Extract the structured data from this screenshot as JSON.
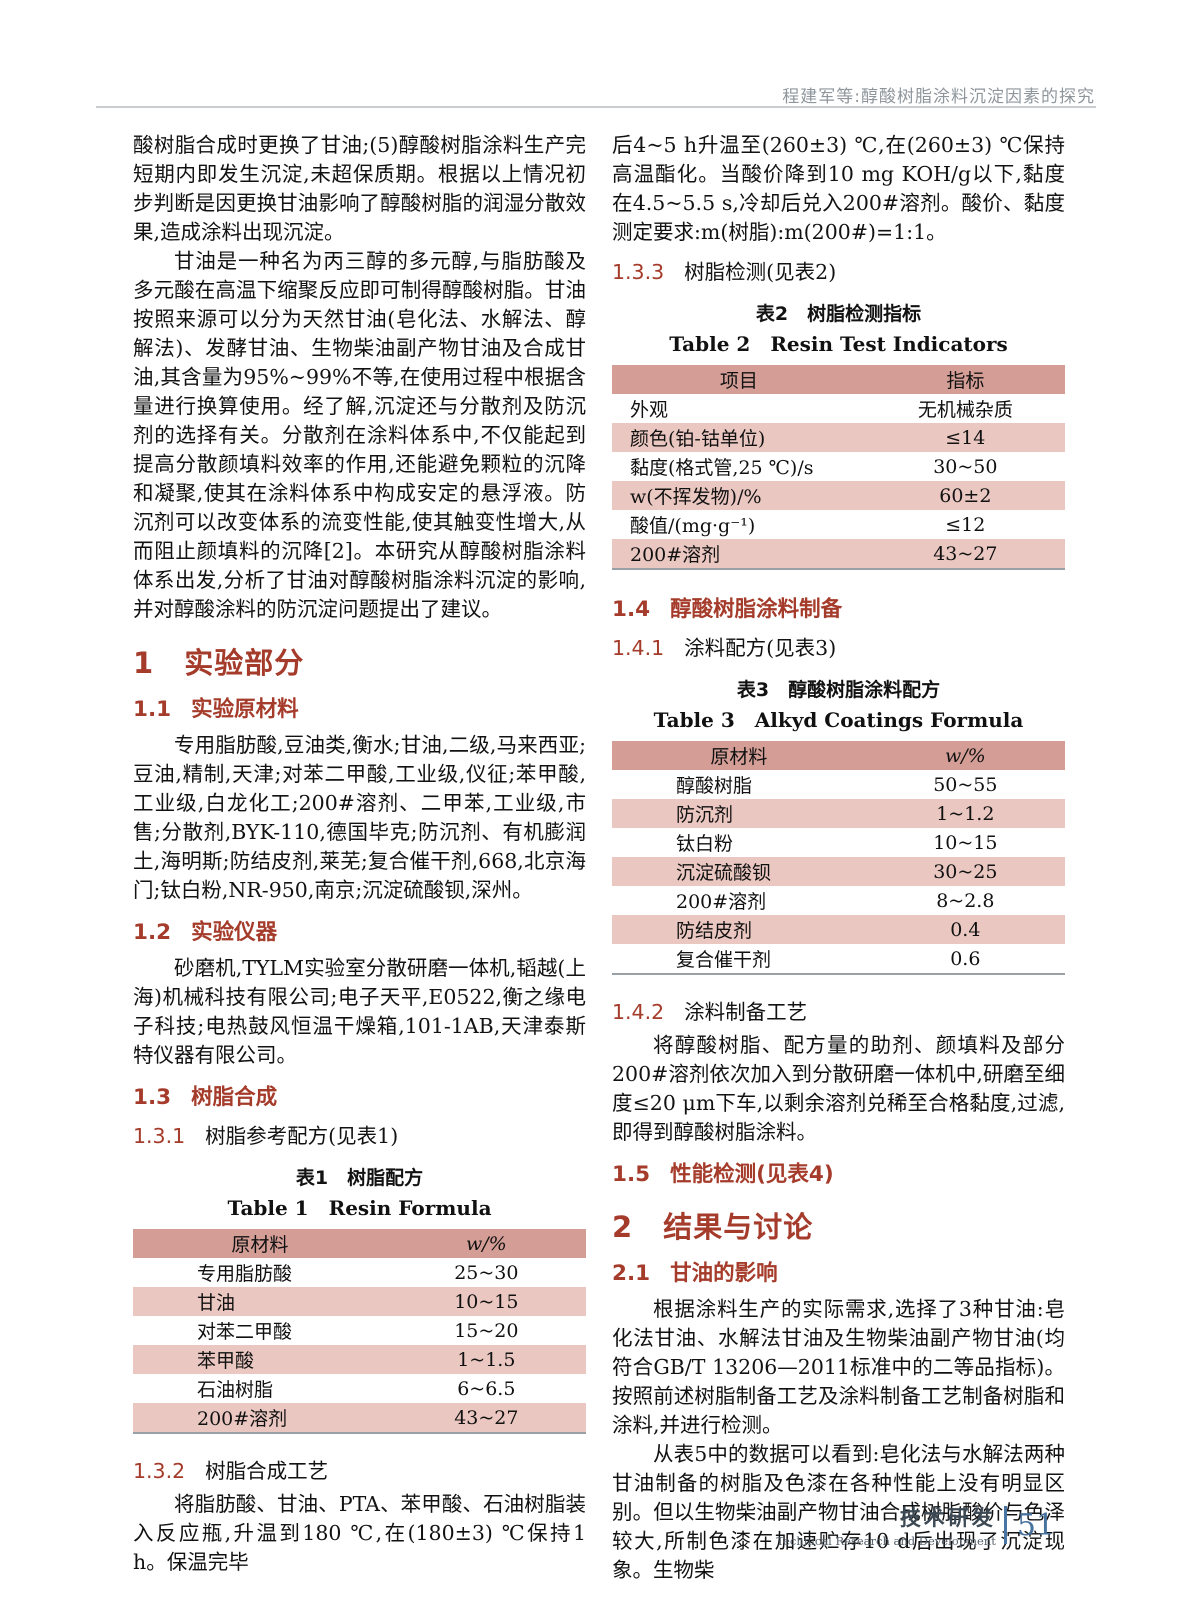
{
  "page": {
    "running_title": "程建军等:醇酸树脂涂料沉淀因素的探究",
    "footer": {
      "section_zh": "技术研发",
      "section_en": "Technical Research and Development",
      "page_number": "51"
    },
    "colors": {
      "accent_red": "#a53b2a",
      "table_header_pink": "#d49e97",
      "table_stripe_pink": "#eac7c1",
      "footer_blue": "#4a74a2"
    }
  },
  "left": {
    "para_continuation": "酸树脂合成时更换了甘油;(5)醇酸树脂涂料生产完短期内即发生沉淀,未超保质期。根据以上情况初步判断是因更换甘油影响了醇酸树脂的润湿分散效果,造成涂料出现沉淀。",
    "para_glycerol": "甘油是一种名为丙三醇的多元醇,与脂肪酸及多元酸在高温下缩聚反应即可制得醇酸树脂。甘油按照来源可以分为天然甘油(皂化法、水解法、醇解法)、发酵甘油、生物柴油副产物甘油及合成甘油,其含量为95%~99%不等,在使用过程中根据含量进行换算使用。经了解,沉淀还与分散剂及防沉剂的选择有关。分散剂在涂料体系中,不仅能起到提高分散颜填料效率的作用,还能避免颗粒的沉降和凝聚,使其在涂料体系中构成安定的悬浮液。防沉剂可以改变体系的流变性能,使其触变性增大,从而阻止颜填料的沉降[2]。本研究从醇酸树脂涂料体系出发,分析了甘油对醇酸树脂涂料沉淀的影响,并对醇酸涂料的防沉淀问题提出了建议。",
    "sec1": {
      "num": "1",
      "title": "实验部分"
    },
    "sec1_1": {
      "num": "1.1",
      "title": "实验原材料"
    },
    "para_materials": "专用脂肪酸,豆油类,衡水;甘油,二级,马来西亚;豆油,精制,天津;对苯二甲酸,工业级,仪征;苯甲酸,工业级,白龙化工;200#溶剂、二甲苯,工业级,市售;分散剂,BYK-110,德国毕克;防沉剂、有机膨润土,海明斯;防结皮剂,莱芜;复合催干剂,668,北京海门;钛白粉,NR-950,南京;沉淀硫酸钡,深州。",
    "sec1_2": {
      "num": "1.2",
      "title": "实验仪器"
    },
    "para_instruments": "砂磨机,TYLM实验室分散研磨一体机,韬越(上海)机械科技有限公司;电子天平,E0522,衡之缘电子科技;电热鼓风恒温干燥箱,101-1AB,天津泰斯特仪器有限公司。",
    "sec1_3": {
      "num": "1.3",
      "title": "树脂合成"
    },
    "sec1_3_1": {
      "num": "1.3.1",
      "title": "树脂参考配方(见表1)"
    },
    "table1": {
      "caption_zh": "表1　树脂配方",
      "caption_en": "Table 1　Resin Formula",
      "headers": [
        "原材料",
        "w/%"
      ],
      "rows": [
        [
          "专用脂肪酸",
          "25~30"
        ],
        [
          "甘油",
          "10~15"
        ],
        [
          "对苯二甲酸",
          "15~20"
        ],
        [
          "苯甲酸",
          "1~1.5"
        ],
        [
          "石油树脂",
          "6~6.5"
        ],
        [
          "200#溶剂",
          "43~27"
        ]
      ]
    },
    "sec1_3_2": {
      "num": "1.3.2",
      "title": "树脂合成工艺"
    },
    "para_synthesis": "将脂肪酸、甘油、PTA、苯甲酸、石油树脂装入反应瓶,升温到180 ℃,在(180±3) ℃保持1 h。保温完毕"
  },
  "right": {
    "para_esterification": "后4~5 h升温至(260±3) ℃,在(260±3) ℃保持高温酯化。当酸价降到10 mg KOH/g以下,黏度在4.5~5.5 s,冷却后兑入200#溶剂。酸价、黏度测定要求:m(树脂):m(200#)=1:1。",
    "sec1_3_3": {
      "num": "1.3.3",
      "title": "树脂检测(见表2)"
    },
    "table2": {
      "caption_zh": "表2　树脂检测指标",
      "caption_en": "Table 2　Resin Test Indicators",
      "headers": [
        "项目",
        "指标"
      ],
      "rows": [
        [
          "外观",
          "无机械杂质"
        ],
        [
          "颜色(铂-钴单位)",
          "≤14"
        ],
        [
          "黏度(格式管,25 ℃)/s",
          "30~50"
        ],
        [
          "w(不挥发物)/%",
          "60±2"
        ],
        [
          "酸值/(mg·g⁻¹)",
          "≤12"
        ],
        [
          "200#溶剂",
          "43~27"
        ]
      ]
    },
    "sec1_4": {
      "num": "1.4",
      "title": "醇酸树脂涂料制备"
    },
    "sec1_4_1": {
      "num": "1.4.1",
      "title": "涂料配方(见表3)"
    },
    "table3": {
      "caption_zh": "表3　醇酸树脂涂料配方",
      "caption_en": "Table 3　Alkyd Coatings Formula",
      "headers": [
        "原材料",
        "w/%"
      ],
      "rows": [
        [
          "醇酸树脂",
          "50~55"
        ],
        [
          "防沉剂",
          "1~1.2"
        ],
        [
          "钛白粉",
          "10~15"
        ],
        [
          "沉淀硫酸钡",
          "30~25"
        ],
        [
          "200#溶剂",
          "8~2.8"
        ],
        [
          "防结皮剂",
          "0.4"
        ],
        [
          "复合催干剂",
          "0.6"
        ]
      ]
    },
    "sec1_4_2": {
      "num": "1.4.2",
      "title": "涂料制备工艺"
    },
    "para_coating_process": "将醇酸树脂、配方量的助剂、颜填料及部分200#溶剂依次加入到分散研磨一体机中,研磨至细度≤20 μm下车,以剩余溶剂兑稀至合格黏度,过滤,即得到醇酸树脂涂料。",
    "sec1_5": {
      "num": "1.5",
      "title": "性能检测(见表4)"
    },
    "sec2": {
      "num": "2",
      "title": "结果与讨论"
    },
    "sec2_1": {
      "num": "2.1",
      "title": "甘油的影响"
    },
    "para_glycerol_selection": "根据涂料生产的实际需求,选择了3种甘油:皂化法甘油、水解法甘油及生物柴油副产物甘油(均符合GB/T 13206—2011标准中的二等品指标)。按照前述树脂制备工艺及涂料制备工艺制备树脂和涂料,并进行检测。",
    "para_table5_results": "从表5中的数据可以看到:皂化法与水解法两种甘油制备的树脂及色漆在各种性能上没有明显区别。但以生物柴油副产物甘油合成树脂酸价与色泽较大,所制色漆在加速贮存10 d后出现了沉淀现象。生物柴"
  }
}
